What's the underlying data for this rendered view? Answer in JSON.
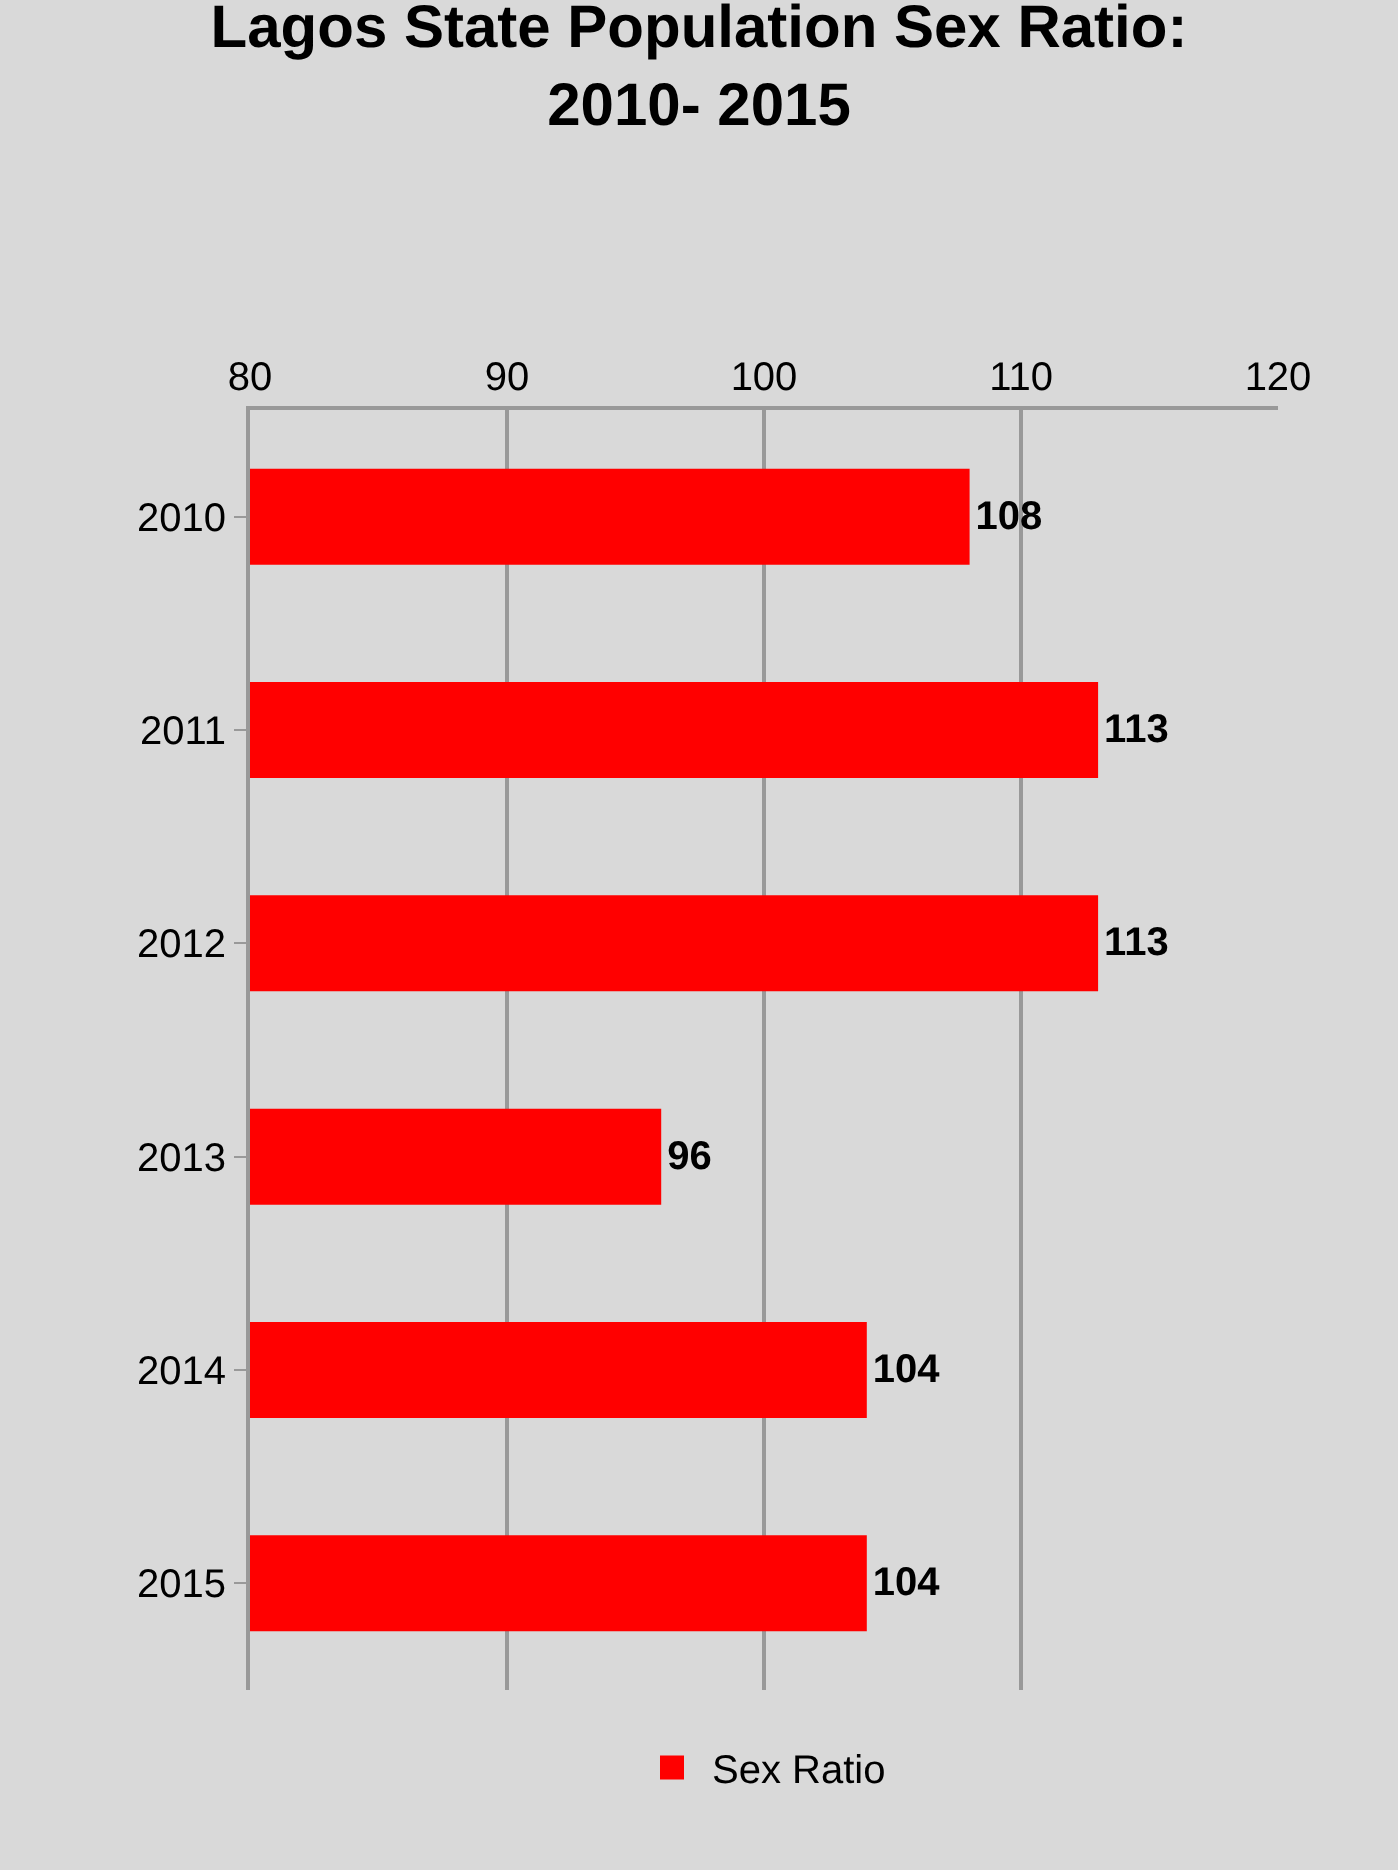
{
  "chart_data": {
    "type": "bar",
    "orientation": "horizontal",
    "title": "Lagos State Population Sex Ratio:\n2010- 2015",
    "categories": [
      "2010",
      "2011",
      "2012",
      "2013",
      "2014",
      "2015"
    ],
    "series": [
      {
        "name": "Sex Ratio",
        "color": "#ff0000",
        "values": [
          108,
          113,
          113,
          96,
          104,
          104
        ]
      }
    ],
    "xlim": [
      80,
      120
    ],
    "xticks": [
      80,
      90,
      100,
      110,
      120
    ],
    "grid": "x",
    "legend": "bottom",
    "data_labels": true
  }
}
